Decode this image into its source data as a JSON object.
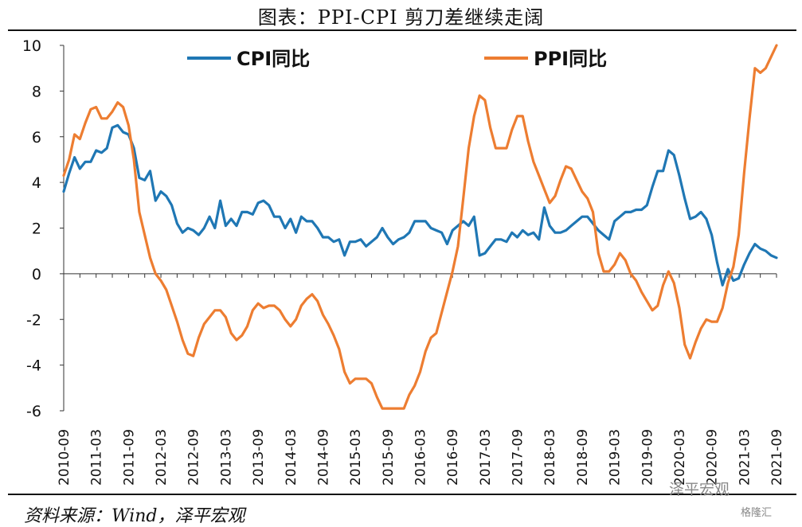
{
  "title": "图表：PPI-CPI 剪刀差继续走阔",
  "source": "资料来源：Wind，泽平宏观",
  "watermark": "泽平宏观",
  "watermark2": "格隆汇",
  "chart_data": {
    "type": "line",
    "ylim": [
      -6,
      10
    ],
    "yticks": [
      -6,
      -4,
      -2,
      0,
      2,
      4,
      6,
      8,
      10
    ],
    "xticks": [
      "2010-09",
      "2011-03",
      "2011-09",
      "2012-03",
      "2012-09",
      "2013-03",
      "2013-09",
      "2014-03",
      "2014-09",
      "2015-03",
      "2015-09",
      "2016-03",
      "2016-09",
      "2017-03",
      "2017-09",
      "2018-03",
      "2018-09",
      "2019-03",
      "2019-09",
      "2020-03",
      "2020-09",
      "2021-03",
      "2021-09"
    ],
    "x": [
      "2010-09",
      "2010-10",
      "2010-11",
      "2010-12",
      "2011-01",
      "2011-02",
      "2011-03",
      "2011-04",
      "2011-05",
      "2011-06",
      "2011-07",
      "2011-08",
      "2011-09",
      "2011-10",
      "2011-11",
      "2011-12",
      "2012-01",
      "2012-02",
      "2012-03",
      "2012-04",
      "2012-05",
      "2012-06",
      "2012-07",
      "2012-08",
      "2012-09",
      "2012-10",
      "2012-11",
      "2012-12",
      "2013-01",
      "2013-02",
      "2013-03",
      "2013-04",
      "2013-05",
      "2013-06",
      "2013-07",
      "2013-08",
      "2013-09",
      "2013-10",
      "2013-11",
      "2013-12",
      "2014-01",
      "2014-02",
      "2014-03",
      "2014-04",
      "2014-05",
      "2014-06",
      "2014-07",
      "2014-08",
      "2014-09",
      "2014-10",
      "2014-11",
      "2014-12",
      "2015-01",
      "2015-02",
      "2015-03",
      "2015-04",
      "2015-05",
      "2015-06",
      "2015-07",
      "2015-08",
      "2015-09",
      "2015-10",
      "2015-11",
      "2015-12",
      "2016-01",
      "2016-02",
      "2016-03",
      "2016-04",
      "2016-05",
      "2016-06",
      "2016-07",
      "2016-08",
      "2016-09",
      "2016-10",
      "2016-11",
      "2016-12",
      "2017-01",
      "2017-02",
      "2017-03",
      "2017-04",
      "2017-05",
      "2017-06",
      "2017-07",
      "2017-08",
      "2017-09",
      "2017-10",
      "2017-11",
      "2017-12",
      "2018-01",
      "2018-02",
      "2018-03",
      "2018-04",
      "2018-05",
      "2018-06",
      "2018-07",
      "2018-08",
      "2018-09",
      "2018-10",
      "2018-11",
      "2018-12",
      "2019-01",
      "2019-02",
      "2019-03",
      "2019-04",
      "2019-05",
      "2019-06",
      "2019-07",
      "2019-08",
      "2019-09",
      "2019-10",
      "2019-11",
      "2019-12",
      "2020-01",
      "2020-02",
      "2020-03",
      "2020-04",
      "2020-05",
      "2020-06",
      "2020-07",
      "2020-08",
      "2020-09",
      "2020-10",
      "2020-11",
      "2020-12",
      "2021-01",
      "2021-02",
      "2021-03",
      "2021-04",
      "2021-05",
      "2021-06",
      "2021-07",
      "2021-08",
      "2021-09"
    ],
    "series": [
      {
        "name": "CPI同比",
        "color": "#1f77b4",
        "values": [
          3.6,
          4.4,
          5.1,
          4.6,
          4.9,
          4.9,
          5.4,
          5.3,
          5.5,
          6.4,
          6.5,
          6.2,
          6.1,
          5.5,
          4.2,
          4.1,
          4.5,
          3.2,
          3.6,
          3.4,
          3.0,
          2.2,
          1.8,
          2.0,
          1.9,
          1.7,
          2.0,
          2.5,
          2.0,
          3.2,
          2.1,
          2.4,
          2.1,
          2.7,
          2.7,
          2.6,
          3.1,
          3.2,
          3.0,
          2.5,
          2.5,
          2.0,
          2.4,
          1.8,
          2.5,
          2.3,
          2.3,
          2.0,
          1.6,
          1.6,
          1.4,
          1.5,
          0.8,
          1.4,
          1.4,
          1.5,
          1.2,
          1.4,
          1.6,
          2.0,
          1.6,
          1.3,
          1.5,
          1.6,
          1.8,
          2.3,
          2.3,
          2.3,
          2.0,
          1.9,
          1.8,
          1.3,
          1.9,
          2.1,
          2.3,
          2.1,
          2.5,
          0.8,
          0.9,
          1.2,
          1.5,
          1.5,
          1.4,
          1.8,
          1.6,
          1.9,
          1.7,
          1.8,
          1.5,
          2.9,
          2.1,
          1.8,
          1.8,
          1.9,
          2.1,
          2.3,
          2.5,
          2.5,
          2.2,
          1.9,
          1.7,
          1.5,
          2.3,
          2.5,
          2.7,
          2.7,
          2.8,
          2.8,
          3.0,
          3.8,
          4.5,
          4.5,
          5.4,
          5.2,
          4.3,
          3.3,
          2.4,
          2.5,
          2.7,
          2.4,
          1.7,
          0.5,
          -0.5,
          0.2,
          -0.3,
          -0.2,
          0.4,
          0.9,
          1.3,
          1.1,
          1.0,
          0.8,
          0.7
        ]
      },
      {
        "name": "PPI同比",
        "color": "#ed7d31",
        "values": [
          4.3,
          5.0,
          6.1,
          5.9,
          6.6,
          7.2,
          7.3,
          6.8,
          6.8,
          7.1,
          7.5,
          7.3,
          6.5,
          5.0,
          2.7,
          1.7,
          0.7,
          0.0,
          -0.3,
          -0.7,
          -1.4,
          -2.1,
          -2.9,
          -3.5,
          -3.6,
          -2.8,
          -2.2,
          -1.9,
          -1.6,
          -1.6,
          -1.9,
          -2.6,
          -2.9,
          -2.7,
          -2.3,
          -1.6,
          -1.3,
          -1.5,
          -1.4,
          -1.4,
          -1.6,
          -2.0,
          -2.3,
          -2.0,
          -1.4,
          -1.1,
          -0.9,
          -1.2,
          -1.8,
          -2.2,
          -2.7,
          -3.3,
          -4.3,
          -4.8,
          -4.6,
          -4.6,
          -4.6,
          -4.8,
          -5.4,
          -5.9,
          -5.9,
          -5.9,
          -5.9,
          -5.9,
          -5.3,
          -4.9,
          -4.3,
          -3.4,
          -2.8,
          -2.6,
          -1.7,
          -0.8,
          0.1,
          1.2,
          3.3,
          5.5,
          6.9,
          7.8,
          7.6,
          6.4,
          5.5,
          5.5,
          5.5,
          6.3,
          6.9,
          6.9,
          5.8,
          4.9,
          4.3,
          3.7,
          3.1,
          3.4,
          4.1,
          4.7,
          4.6,
          4.1,
          3.6,
          3.3,
          2.7,
          0.9,
          0.1,
          0.1,
          0.4,
          0.9,
          0.6,
          0.0,
          -0.3,
          -0.8,
          -1.2,
          -1.6,
          -1.4,
          -0.5,
          0.1,
          -0.4,
          -1.5,
          -3.1,
          -3.7,
          -3.0,
          -2.4,
          -2.0,
          -2.1,
          -2.1,
          -1.5,
          -0.4,
          0.3,
          1.7,
          4.4,
          6.8,
          9.0,
          8.8,
          9.0,
          9.5,
          10.0
        ]
      }
    ]
  }
}
